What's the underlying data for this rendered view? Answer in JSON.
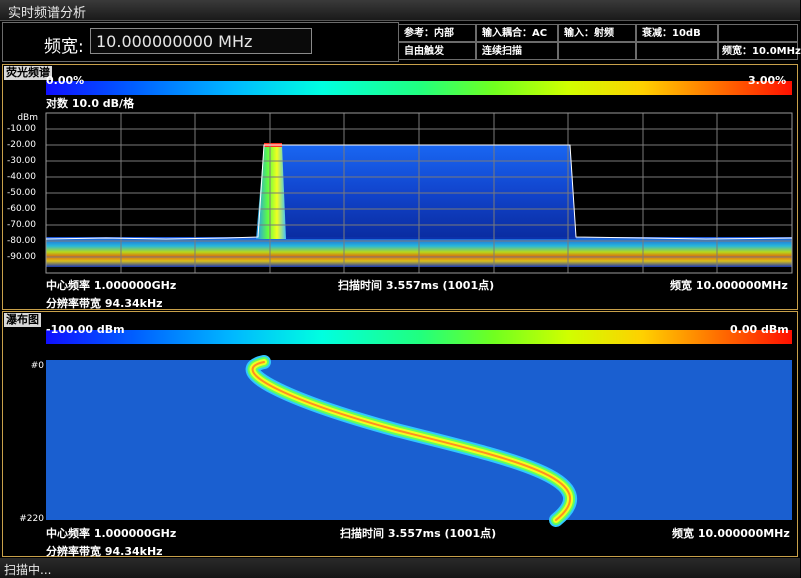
{
  "window": {
    "title": "实时频谱分析"
  },
  "params": {
    "bw_label": "频宽:",
    "bw_value": "10.000000000 MHz",
    "info": {
      "ref": "参考：内部",
      "coupling": "输入耦合：AC",
      "input": "输入：射频",
      "atten": "衰减：10dB",
      "trigger": "自由触发",
      "sweep_mode": "连续扫描",
      "span": "频宽：10.0MHz"
    }
  },
  "spectrum": {
    "tag": "荧光频谱",
    "scale_min": "0.00%",
    "scale_max": "3.00%",
    "scale_label": "对数 10.0 dB/格",
    "y_unit": "dBm",
    "y_ticks": [
      "-10.00",
      "-20.00",
      "-30.00",
      "-40.00",
      "-50.00",
      "-60.00",
      "-70.00",
      "-80.00",
      "-90.00"
    ],
    "center_freq": "中心频率 1.000000GHz",
    "sweep_time": "扫描时间 3.557ms (1001点)",
    "span": "频宽 10.000000MHz",
    "rbw": "分辨率带宽 94.34kHz"
  },
  "waterfall": {
    "tag": "瀑布图",
    "scale_min": "-100.00 dBm",
    "scale_max": "0.00 dBm",
    "row_top": "#0",
    "row_bottom": "#220",
    "center_freq": "中心频率 1.000000GHz",
    "sweep_time": "扫描时间 3.557ms (1001点)",
    "span": "频宽 10.000000MHz",
    "rbw": "分辨率带宽 94.34kHz"
  },
  "status": {
    "text": "扫描中..."
  },
  "colors": {
    "panel_border": "#c8a04a",
    "waterfall_bg": "#1a5fd0",
    "trace": "#ffffff"
  }
}
